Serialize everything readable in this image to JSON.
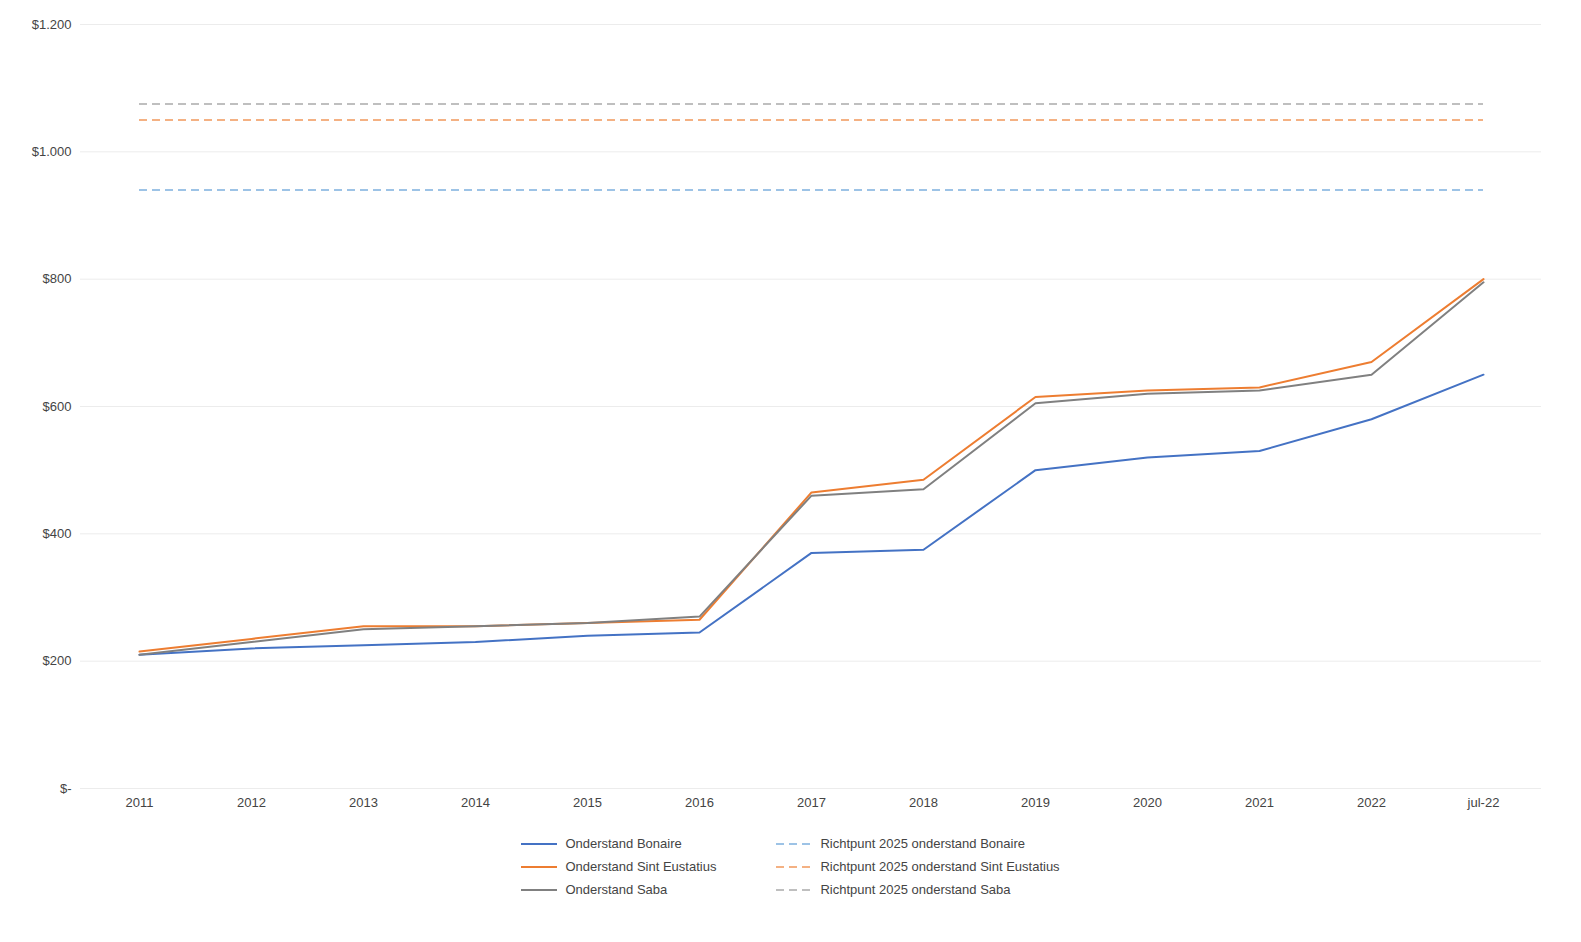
{
  "chart_data": {
    "type": "line",
    "categories": [
      "2011",
      "2012",
      "2013",
      "2014",
      "2015",
      "2016",
      "2017",
      "2018",
      "2019",
      "2020",
      "2021",
      "2022",
      "jul-22"
    ],
    "series": [
      {
        "name": "Onderstand Bonaire",
        "color": "#4472C4",
        "line_style": "solid",
        "values": [
          210,
          220,
          225,
          230,
          240,
          245,
          370,
          375,
          500,
          520,
          530,
          580,
          650
        ]
      },
      {
        "name": "Richtpunt 2025 onderstand Bonaire",
        "color": "#9DC3E6",
        "type": "hline",
        "line_style": "dashed",
        "value": 940
      },
      {
        "name": "Onderstand Sint Eustatius",
        "color": "#ED7D31",
        "line_style": "solid",
        "values": [
          215,
          235,
          255,
          255,
          260,
          265,
          465,
          485,
          615,
          625,
          630,
          670,
          800
        ]
      },
      {
        "name": "Richtpunt 2025 onderstand Sint Eustatius",
        "color": "#F4B183",
        "type": "hline",
        "line_style": "dashed",
        "value": 1050
      },
      {
        "name": "Onderstand Saba",
        "color": "#808080",
        "line_style": "solid",
        "values": [
          210,
          230,
          250,
          255,
          260,
          270,
          460,
          470,
          605,
          620,
          625,
          650,
          795
        ]
      },
      {
        "name": "Richtpunt 2025 onderstand Saba",
        "color": "#BFBFBF",
        "type": "hline",
        "line_style": "dashed",
        "value": 1075
      }
    ],
    "ylim": [
      0,
      1200
    ],
    "yticks": [
      {
        "value": 0,
        "label": "$-"
      },
      {
        "value": 200,
        "label": "$200"
      },
      {
        "value": 400,
        "label": "$400"
      },
      {
        "value": 600,
        "label": "$600"
      },
      {
        "value": 800,
        "label": "$800"
      },
      {
        "value": 1000,
        "label": "$1.000"
      },
      {
        "value": 1200,
        "label": "$1.200"
      }
    ],
    "grid": true,
    "legend": "bottom"
  }
}
